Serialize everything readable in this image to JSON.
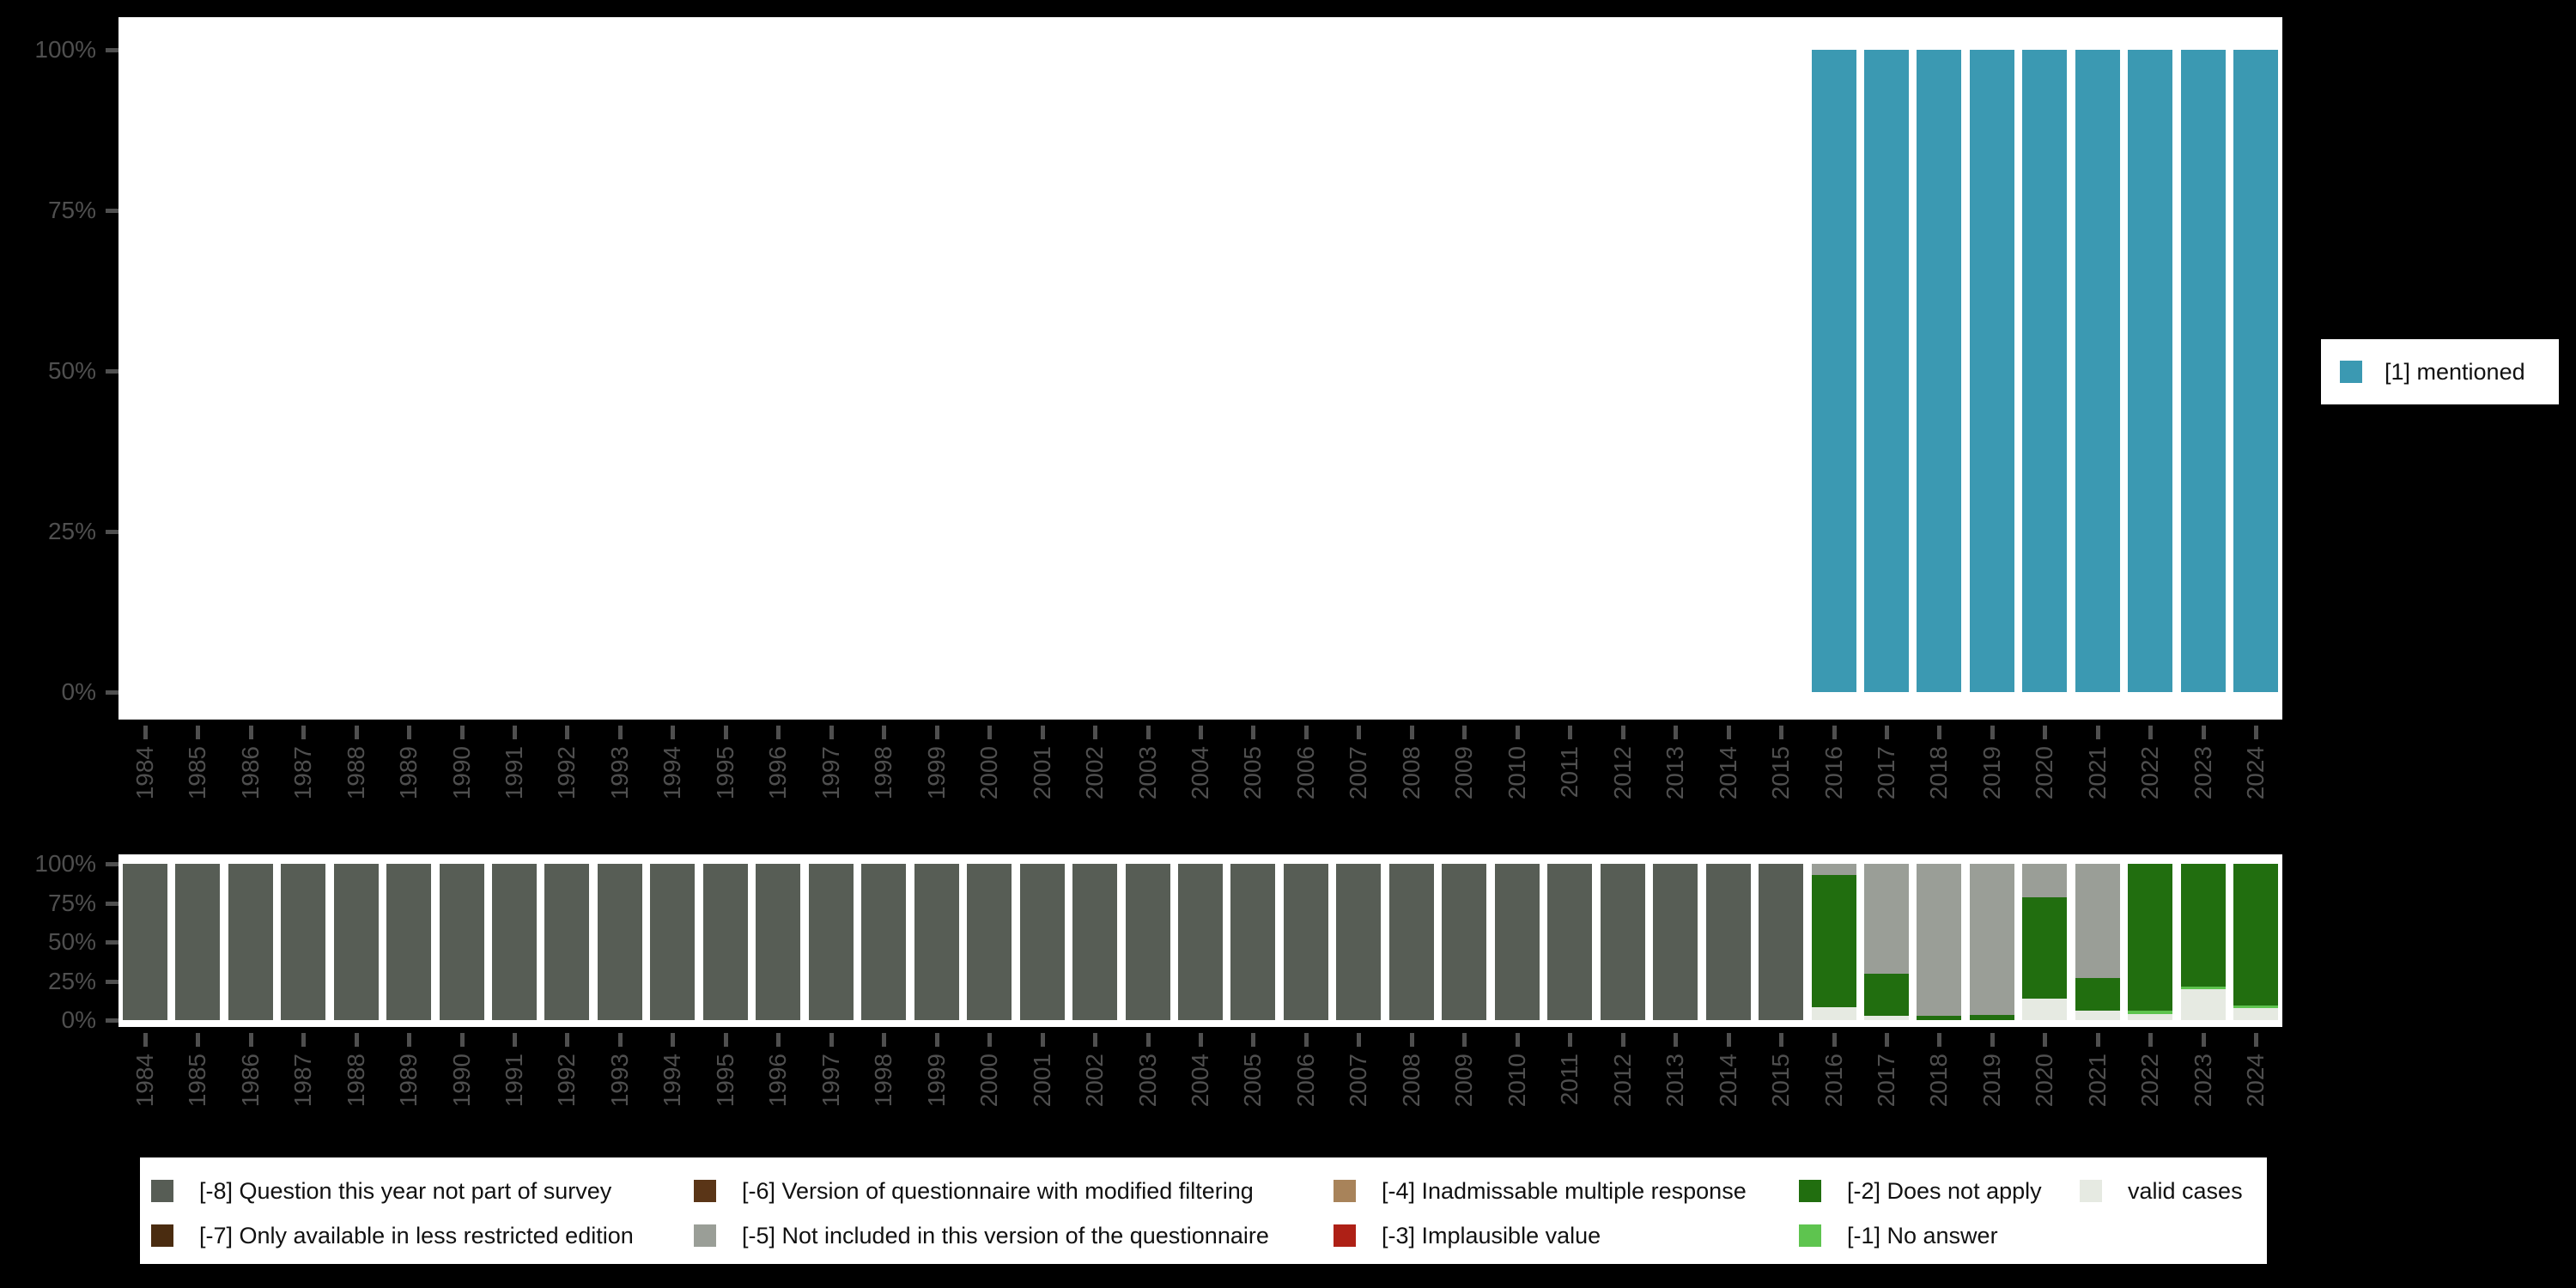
{
  "colors": {
    "background": "#000000",
    "panel_background": "#ffffff",
    "axis_text": "#4f4f4f",
    "mentioned_teal": "#3b99b2",
    "valid_cases_gray": "#e6eae2"
  },
  "axes": {
    "ytick_labels": [
      "100%",
      "75%",
      "50%",
      "25%",
      "0%"
    ],
    "years": [
      1984,
      1985,
      1986,
      1987,
      1988,
      1989,
      1990,
      1991,
      1992,
      1993,
      1994,
      1995,
      1996,
      1997,
      1998,
      1999,
      2000,
      2001,
      2002,
      2003,
      2004,
      2005,
      2006,
      2007,
      2008,
      2009,
      2010,
      2011,
      2012,
      2013,
      2014,
      2015,
      2016,
      2017,
      2018,
      2019,
      2020,
      2021,
      2022,
      2023,
      2024
    ]
  },
  "legend_right": {
    "items": [
      {
        "label": "[1] mentioned",
        "color": "#3b99b2"
      }
    ]
  },
  "legend_bottom": {
    "columns": [
      [
        {
          "label": "[-8] Question this year not part of survey",
          "color": "#575d55"
        },
        {
          "label": "[-7] Only available in less restricted edition",
          "color": "#4a2c10"
        }
      ],
      [
        {
          "label": "[-6] Version of questionnaire with modified filtering",
          "color": "#5a3517"
        },
        {
          "label": "[-5] Not included in this version of the questionnaire",
          "color": "#9a9e97"
        }
      ],
      [
        {
          "label": "[-4] Inadmissable multiple response",
          "color": "#a8835a"
        },
        {
          "label": "[-3] Implausible value",
          "color": "#ae2016"
        }
      ],
      [
        {
          "label": "[-2] Does not apply",
          "color": "#216e0f"
        },
        {
          "label": "[-1] No answer",
          "color": "#5ec44f"
        }
      ],
      [
        {
          "label": "valid cases",
          "color": "#e6eae2"
        }
      ]
    ]
  },
  "chart_data": [
    {
      "id": "percent-mentioned",
      "type": "bar",
      "stacked": true,
      "title": "",
      "xlabel": "",
      "ylabel": "",
      "ylim": [
        0,
        100
      ],
      "yticks": [
        "0%",
        "25%",
        "50%",
        "75%",
        "100%"
      ],
      "grid": false,
      "legend_position": "right",
      "categories": [
        1984,
        1985,
        1986,
        1987,
        1988,
        1989,
        1990,
        1991,
        1992,
        1993,
        1994,
        1995,
        1996,
        1997,
        1998,
        1999,
        2000,
        2001,
        2002,
        2003,
        2004,
        2005,
        2006,
        2007,
        2008,
        2009,
        2010,
        2011,
        2012,
        2013,
        2014,
        2015,
        2016,
        2017,
        2018,
        2019,
        2020,
        2021,
        2022,
        2023,
        2024
      ],
      "series": [
        {
          "name": "[1] mentioned",
          "color": "#3b99b2",
          "values": [
            0,
            0,
            0,
            0,
            0,
            0,
            0,
            0,
            0,
            0,
            0,
            0,
            0,
            0,
            0,
            0,
            0,
            0,
            0,
            0,
            0,
            0,
            0,
            0,
            0,
            0,
            0,
            0,
            0,
            0,
            0,
            0,
            100,
            100,
            100,
            100,
            100,
            100,
            100,
            100,
            100
          ]
        }
      ]
    },
    {
      "id": "missing-values",
      "type": "bar",
      "stacked": true,
      "title": "",
      "xlabel": "",
      "ylabel": "",
      "ylim": [
        0,
        100
      ],
      "yticks": [
        "0%",
        "25%",
        "50%",
        "75%",
        "100%"
      ],
      "grid": false,
      "legend_position": "bottom",
      "categories": [
        1984,
        1985,
        1986,
        1987,
        1988,
        1989,
        1990,
        1991,
        1992,
        1993,
        1994,
        1995,
        1996,
        1997,
        1998,
        1999,
        2000,
        2001,
        2002,
        2003,
        2004,
        2005,
        2006,
        2007,
        2008,
        2009,
        2010,
        2011,
        2012,
        2013,
        2014,
        2015,
        2016,
        2017,
        2018,
        2019,
        2020,
        2021,
        2022,
        2023,
        2024
      ],
      "series": [
        {
          "name": "[-8] Question this year not part of survey",
          "color": "#575d55",
          "values": [
            100,
            100,
            100,
            100,
            100,
            100,
            100,
            100,
            100,
            100,
            100,
            100,
            100,
            100,
            100,
            100,
            100,
            100,
            100,
            100,
            100,
            100,
            100,
            100,
            100,
            100,
            100,
            100,
            100,
            100,
            100,
            100,
            0,
            0,
            0,
            0,
            0,
            0,
            0,
            0,
            0
          ]
        },
        {
          "name": "[-7] Only available in less restricted edition",
          "color": "#4a2c10",
          "values": [
            0,
            0,
            0,
            0,
            0,
            0,
            0,
            0,
            0,
            0,
            0,
            0,
            0,
            0,
            0,
            0,
            0,
            0,
            0,
            0,
            0,
            0,
            0,
            0,
            0,
            0,
            0,
            0,
            0,
            0,
            0,
            0,
            0,
            0,
            0,
            0,
            0,
            0,
            0,
            0,
            0
          ]
        },
        {
          "name": "[-6] Version of questionnaire with modified filtering",
          "color": "#5a3517",
          "values": [
            0,
            0,
            0,
            0,
            0,
            0,
            0,
            0,
            0,
            0,
            0,
            0,
            0,
            0,
            0,
            0,
            0,
            0,
            0,
            0,
            0,
            0,
            0,
            0,
            0,
            0,
            0,
            0,
            0,
            0,
            0,
            0,
            0,
            0,
            0,
            0,
            0,
            0,
            0,
            0,
            0
          ]
        },
        {
          "name": "[-5] Not included in this version of the questionnaire",
          "color": "#9a9e97",
          "values": [
            0,
            0,
            0,
            0,
            0,
            0,
            0,
            0,
            0,
            0,
            0,
            0,
            0,
            0,
            0,
            0,
            0,
            0,
            0,
            0,
            0,
            0,
            0,
            0,
            0,
            0,
            0,
            0,
            0,
            0,
            0,
            0,
            7,
            70.5,
            97.5,
            96.5,
            21.5,
            73,
            0,
            0,
            0
          ]
        },
        {
          "name": "[-4] Inadmissable multiple response",
          "color": "#a8835a",
          "values": [
            0,
            0,
            0,
            0,
            0,
            0,
            0,
            0,
            0,
            0,
            0,
            0,
            0,
            0,
            0,
            0,
            0,
            0,
            0,
            0,
            0,
            0,
            0,
            0,
            0,
            0,
            0,
            0,
            0,
            0,
            0,
            0,
            0,
            0,
            0,
            0,
            0,
            0,
            0,
            0,
            0
          ]
        },
        {
          "name": "[-3] Implausible value",
          "color": "#ae2016",
          "values": [
            0,
            0,
            0,
            0,
            0,
            0,
            0,
            0,
            0,
            0,
            0,
            0,
            0,
            0,
            0,
            0,
            0,
            0,
            0,
            0,
            0,
            0,
            0,
            0,
            0,
            0,
            0,
            0,
            0,
            0,
            0,
            0,
            0,
            0,
            0,
            0,
            0,
            0,
            0,
            0,
            0
          ]
        },
        {
          "name": "[-2] Does not apply",
          "color": "#216e0f",
          "values": [
            0,
            0,
            0,
            0,
            0,
            0,
            0,
            0,
            0,
            0,
            0,
            0,
            0,
            0,
            0,
            0,
            0,
            0,
            0,
            0,
            0,
            0,
            0,
            0,
            0,
            0,
            0,
            0,
            0,
            0,
            0,
            0,
            84.5,
            26.5,
            2.5,
            3.5,
            65,
            21,
            94,
            78.5,
            90.5
          ]
        },
        {
          "name": "[-1] No answer",
          "color": "#5ec44f",
          "values": [
            0,
            0,
            0,
            0,
            0,
            0,
            0,
            0,
            0,
            0,
            0,
            0,
            0,
            0,
            0,
            0,
            0,
            0,
            0,
            0,
            0,
            0,
            0,
            0,
            0,
            0,
            0,
            0,
            0,
            0,
            0,
            0,
            0,
            0,
            0,
            0,
            0,
            0,
            2,
            1.5,
            2
          ]
        },
        {
          "name": "valid cases",
          "color": "#e6eae2",
          "values": [
            0,
            0,
            0,
            0,
            0,
            0,
            0,
            0,
            0,
            0,
            0,
            0,
            0,
            0,
            0,
            0,
            0,
            0,
            0,
            0,
            0,
            0,
            0,
            0,
            0,
            0,
            0,
            0,
            0,
            0,
            0,
            0,
            8.5,
            3,
            0,
            0,
            13.5,
            6,
            4,
            20,
            7.5
          ]
        }
      ]
    }
  ]
}
